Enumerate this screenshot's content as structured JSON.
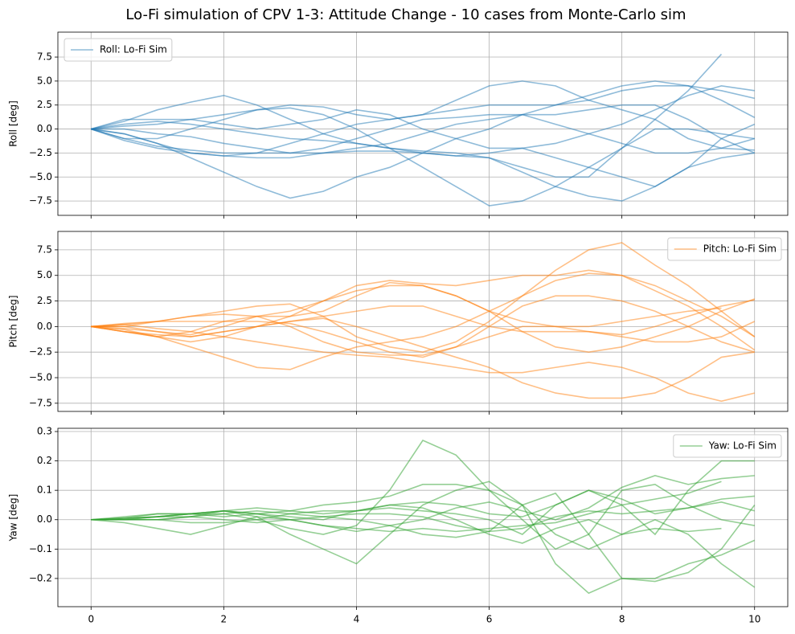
{
  "title": "Lo-Fi simulation of CPV 1-3: Attitude Change - 10 cases from Monte-Carlo sim",
  "chart_data": [
    {
      "type": "line",
      "ylabel": "Roll [deg]",
      "legend": "upper left",
      "grid": true,
      "x": [
        0,
        0.5,
        1,
        1.5,
        2,
        2.5,
        3,
        3.5,
        4,
        4.5,
        5,
        5.5,
        6,
        6.5,
        7,
        7.5,
        8,
        8.5,
        9,
        9.5,
        10
      ],
      "xlim": [
        -0.5,
        10.5
      ],
      "xticks": [
        0,
        2,
        4,
        6,
        8,
        10
      ],
      "ylim": [
        -9,
        10.1
      ],
      "yticks": [
        {
          "value": -7.5,
          "label": "−7.5"
        },
        {
          "value": -5,
          "label": "−5.0"
        },
        {
          "value": -2.5,
          "label": "−2.5"
        },
        {
          "value": 0,
          "label": "0.0"
        },
        2.5,
        {
          "value": 5,
          "label": "5.0"
        },
        7.5
      ],
      "series": [
        {
          "name": "Roll: Lo-Fi Sim",
          "color": "#1f77b4",
          "values": [
            0,
            0.8,
            2,
            2.8,
            3.5,
            2.5,
            1,
            -0.5,
            -1.5,
            -2,
            -2.5,
            -2.8,
            -3,
            -4.5,
            -6,
            -7,
            -7.5,
            -6,
            -4,
            -1,
            0.5
          ]
        },
        {
          "color": "#1f77b4",
          "values": [
            0,
            -0.5,
            -1.5,
            -2.5,
            -2.8,
            -2.5,
            -1.5,
            -0.5,
            0.5,
            1,
            1.5,
            2,
            2.5,
            2.5,
            2.5,
            3,
            4,
            4.5,
            4.5,
            3,
            1.2
          ]
        },
        {
          "color": "#1f77b4",
          "values": [
            0,
            -1,
            -1.8,
            -2.2,
            -2.5,
            -2.5,
            -2.5,
            -2,
            -1,
            0,
            1,
            1.2,
            1.5,
            1.5,
            0.5,
            -0.5,
            -1.5,
            -2.5,
            -2.5,
            -2,
            -1
          ]
        },
        {
          "color": "#1f77b4",
          "values": [
            0,
            -0.5,
            -1.5,
            -3,
            -4.5,
            -6,
            -7.2,
            -6.5,
            -5,
            -4,
            -2.5,
            -1,
            0,
            1.5,
            2.5,
            3.5,
            4.5,
            5,
            4.5,
            4,
            3.2
          ]
        },
        {
          "color": "#1f77b4",
          "values": [
            0,
            0.5,
            0.8,
            0.5,
            0,
            -0.5,
            -1,
            -1.2,
            -1.5,
            -2,
            -2.3,
            -2.5,
            -3,
            -4,
            -5,
            -5,
            -2,
            1,
            4,
            7.8,
            null
          ]
        },
        {
          "color": "#1f77b4",
          "values": [
            0,
            -1,
            -1,
            0,
            1,
            2,
            2.2,
            1.5,
            0,
            -2,
            -4,
            -6,
            -8,
            -7.5,
            -6,
            -4,
            -2,
            0,
            0,
            -0.5,
            -1
          ]
        },
        {
          "color": "#1f77b4",
          "values": [
            0,
            1,
            1,
            1,
            0.5,
            0,
            0.5,
            1,
            2,
            1.5,
            0,
            -1,
            -2,
            -2,
            -3,
            -4,
            -5,
            -6,
            -4,
            -3,
            -2.5
          ]
        },
        {
          "color": "#1f77b4",
          "values": [
            0,
            0.3,
            0.5,
            1,
            1.5,
            2,
            2.5,
            2.3,
            1.5,
            1,
            1.5,
            3,
            4.5,
            5,
            4.5,
            3,
            2,
            1,
            -1,
            -2,
            -2.2
          ]
        },
        {
          "color": "#1f77b4",
          "values": [
            0,
            -1.2,
            -2,
            -2.5,
            -2.8,
            -3,
            -3,
            -2.5,
            -2,
            -1.5,
            -0.5,
            0.5,
            1,
            1.5,
            1.5,
            2,
            2.5,
            2.5,
            1,
            -1,
            -2.5
          ]
        },
        {
          "color": "#1f77b4",
          "values": [
            0,
            0,
            -0.5,
            -0.8,
            -1.5,
            -2,
            -2.5,
            -2.5,
            -2.3,
            -2.3,
            -2.5,
            -2.8,
            -2.5,
            -2,
            -1.5,
            -0.5,
            0.5,
            2,
            3.5,
            4.5,
            4
          ]
        }
      ]
    },
    {
      "type": "line",
      "ylabel": "Pitch [deg]",
      "legend": "upper right",
      "grid": true,
      "x": [
        0,
        0.5,
        1,
        1.5,
        2,
        2.5,
        3,
        3.5,
        4,
        4.5,
        5,
        5.5,
        6,
        6.5,
        7,
        7.5,
        8,
        8.5,
        9,
        9.5,
        10
      ],
      "xlim": [
        -0.5,
        10.5
      ],
      "xticks": [
        0,
        2,
        4,
        6,
        8,
        10
      ],
      "ylim": [
        -8.3,
        9.3
      ],
      "yticks": [
        {
          "value": -7.5,
          "label": "−7.5"
        },
        {
          "value": -5,
          "label": "−5.0"
        },
        {
          "value": -2.5,
          "label": "−2.5"
        },
        {
          "value": 0,
          "label": "0.0"
        },
        2.5,
        {
          "value": 5,
          "label": "5.0"
        },
        7.5
      ],
      "series": [
        {
          "name": "Pitch: Lo-Fi Sim",
          "color": "#ff7f0e",
          "values": [
            0,
            0,
            -0.5,
            -1,
            -0.5,
            0,
            1,
            2.5,
            4,
            4.5,
            4.2,
            4,
            4.5,
            5,
            5,
            5.5,
            5,
            4,
            2.5,
            1,
            -1
          ]
        },
        {
          "color": "#ff7f0e",
          "values": [
            0,
            0.2,
            0.5,
            1,
            1.5,
            2,
            2.2,
            1,
            -1,
            -2,
            -2.5,
            -1.5,
            0.5,
            3,
            5.5,
            7.5,
            8.2,
            6,
            4,
            1.5,
            -1
          ]
        },
        {
          "color": "#ff7f0e",
          "values": [
            0,
            -0.5,
            -1,
            -2,
            -3,
            -4,
            -4.2,
            -3,
            -2,
            -1.5,
            -1,
            0,
            1.5,
            3,
            4.5,
            5.2,
            5,
            3.5,
            2,
            0,
            -2.3
          ]
        },
        {
          "color": "#ff7f0e",
          "values": [
            0,
            -0.3,
            -1,
            -1.5,
            -1,
            0,
            0.5,
            0.8,
            0,
            -1,
            -2,
            -3,
            -4,
            -5.5,
            -6.5,
            -7,
            -7,
            -6.5,
            -5,
            -3,
            -2.5
          ]
        },
        {
          "color": "#ff7f0e",
          "values": [
            0,
            0.2,
            -0.2,
            -0.5,
            -1,
            -1.5,
            -2,
            -2.5,
            -2.8,
            -3,
            -3.5,
            -4,
            -4.5,
            -4.5,
            -4,
            -3.5,
            -4,
            -5,
            -6.5,
            -7.3,
            -6.5
          ]
        },
        {
          "color": "#ff7f0e",
          "values": [
            0,
            -0.5,
            -1,
            -0.5,
            0.5,
            1,
            1,
            1.5,
            3,
            4.3,
            4,
            3,
            1.5,
            -0.5,
            -2,
            -2.5,
            -2,
            -1,
            0,
            1.5,
            2.7
          ]
        },
        {
          "color": "#ff7f0e",
          "values": [
            0,
            0.3,
            0.5,
            1,
            1.2,
            1,
            0,
            -1.5,
            -2.5,
            -2.8,
            -2.8,
            -2,
            -1,
            0,
            0,
            -0.5,
            -0.8,
            0,
            1,
            2,
            2.6
          ]
        },
        {
          "color": "#ff7f0e",
          "values": [
            0,
            -0.2,
            -0.5,
            -0.8,
            0,
            1,
            1.5,
            2.5,
            3.5,
            4,
            4,
            3,
            1.5,
            0.5,
            0,
            0,
            0.5,
            1,
            1.5,
            1.8,
            null
          ]
        },
        {
          "color": "#ff7f0e",
          "values": [
            0,
            0,
            0.5,
            0.5,
            0.5,
            0.5,
            0.3,
            -0.5,
            -1.5,
            -2.5,
            -3,
            -2,
            0,
            2,
            3,
            3,
            2.5,
            1.5,
            0,
            -1.5,
            -2.5
          ]
        },
        {
          "color": "#ff7f0e",
          "values": [
            0,
            -0.5,
            -0.8,
            -1,
            -0.5,
            0,
            0.5,
            1,
            1.5,
            2,
            2,
            1,
            0,
            -0.5,
            -0.5,
            -0.5,
            -1,
            -1.5,
            -1.5,
            -1,
            0.5
          ]
        }
      ]
    },
    {
      "type": "line",
      "ylabel": "Yaw [deg]",
      "legend": "upper right",
      "grid": true,
      "x": [
        0,
        0.5,
        1,
        1.5,
        2,
        2.5,
        3,
        3.5,
        4,
        4.5,
        5,
        5.5,
        6,
        6.5,
        7,
        7.5,
        8,
        8.5,
        9,
        9.5,
        10
      ],
      "xlim": [
        -0.5,
        10.5
      ],
      "xticks": [
        0,
        2,
        4,
        6,
        8,
        10
      ],
      "ylim": [
        -0.296,
        0.311
      ],
      "yticks": [
        {
          "value": -0.2,
          "label": "−0.2"
        },
        {
          "value": -0.1,
          "label": "−0.1"
        },
        {
          "value": 0,
          "label": "0.0"
        },
        0.1,
        0.2,
        0.3
      ],
      "series": [
        {
          "name": "Yaw: Lo-Fi Sim",
          "color": "#2ca02c",
          "values": [
            0,
            0,
            0.01,
            0.02,
            0.02,
            0,
            -0.03,
            -0.05,
            -0.02,
            0.1,
            0.27,
            0.22,
            0.1,
            0.05,
            -0.05,
            -0.1,
            -0.05,
            0,
            -0.05,
            -0.15,
            -0.23
          ]
        },
        {
          "color": "#2ca02c",
          "values": [
            0,
            0.005,
            0.01,
            0.02,
            0.03,
            0.01,
            -0.05,
            -0.1,
            -0.15,
            -0.05,
            0.05,
            0.1,
            0.13,
            0.05,
            -0.15,
            -0.25,
            -0.2,
            -0.2,
            -0.15,
            -0.12,
            -0.07
          ]
        },
        {
          "color": "#2ca02c",
          "values": [
            0,
            0,
            0,
            0.01,
            0.03,
            0.04,
            0.03,
            0.05,
            0.06,
            0.08,
            0.12,
            0.12,
            0.1,
            0,
            -0.1,
            -0.05,
            0.1,
            0.12,
            0.05,
            0,
            -0.02
          ]
        },
        {
          "color": "#2ca02c",
          "values": [
            0,
            0.005,
            0.01,
            0.02,
            0.01,
            0.02,
            0.03,
            0.02,
            0.03,
            0.04,
            0.03,
            0.02,
            0,
            -0.05,
            0.05,
            0.1,
            0.05,
            -0.05,
            0.1,
            0.2,
            0.2
          ]
        },
        {
          "color": "#2ca02c",
          "values": [
            0,
            -0.01,
            -0.03,
            -0.05,
            -0.02,
            0.01,
            0,
            -0.02,
            -0.04,
            -0.02,
            0,
            0.04,
            0.06,
            0.03,
            0,
            0.04,
            0.11,
            0.15,
            0.12,
            0.14,
            0.15
          ]
        },
        {
          "color": "#2ca02c",
          "values": [
            0,
            0,
            0.01,
            0.01,
            0,
            -0.01,
            0,
            0.01,
            0.02,
            0.02,
            0.01,
            -0.02,
            -0.04,
            -0.03,
            0.01,
            0.03,
            0.02,
            0.03,
            0.04,
            0.07,
            0.08
          ]
        },
        {
          "color": "#2ca02c",
          "values": [
            0,
            0,
            0,
            0.01,
            0.02,
            0.03,
            0.02,
            0.01,
            0,
            -0.02,
            -0.05,
            -0.06,
            -0.04,
            0.05,
            0.09,
            -0.05,
            -0.2,
            -0.21,
            -0.18,
            -0.1,
            0.05
          ]
        },
        {
          "color": "#2ca02c",
          "values": [
            0,
            0.005,
            0.02,
            0.02,
            0.03,
            0.02,
            0.01,
            0,
            0.03,
            0.05,
            0.04,
            0,
            -0.05,
            -0.08,
            -0.03,
            0,
            -0.05,
            -0.03,
            -0.04,
            -0.03,
            null
          ]
        },
        {
          "color": "#2ca02c",
          "values": [
            0,
            0.01,
            0.02,
            0.02,
            0.03,
            0.02,
            0,
            -0.02,
            -0.03,
            -0.04,
            -0.03,
            -0.04,
            -0.03,
            -0.02,
            -0.01,
            0.02,
            0.05,
            0.07,
            0.09,
            0.13,
            null
          ]
        },
        {
          "color": "#2ca02c",
          "values": [
            0,
            0,
            0,
            -0.01,
            -0.01,
            0,
            0.02,
            0.03,
            0.03,
            0.05,
            0.06,
            0.05,
            0.02,
            0.01,
            0.05,
            0.1,
            0.07,
            0.02,
            0.04,
            0.06,
            0.03
          ]
        }
      ]
    }
  ]
}
